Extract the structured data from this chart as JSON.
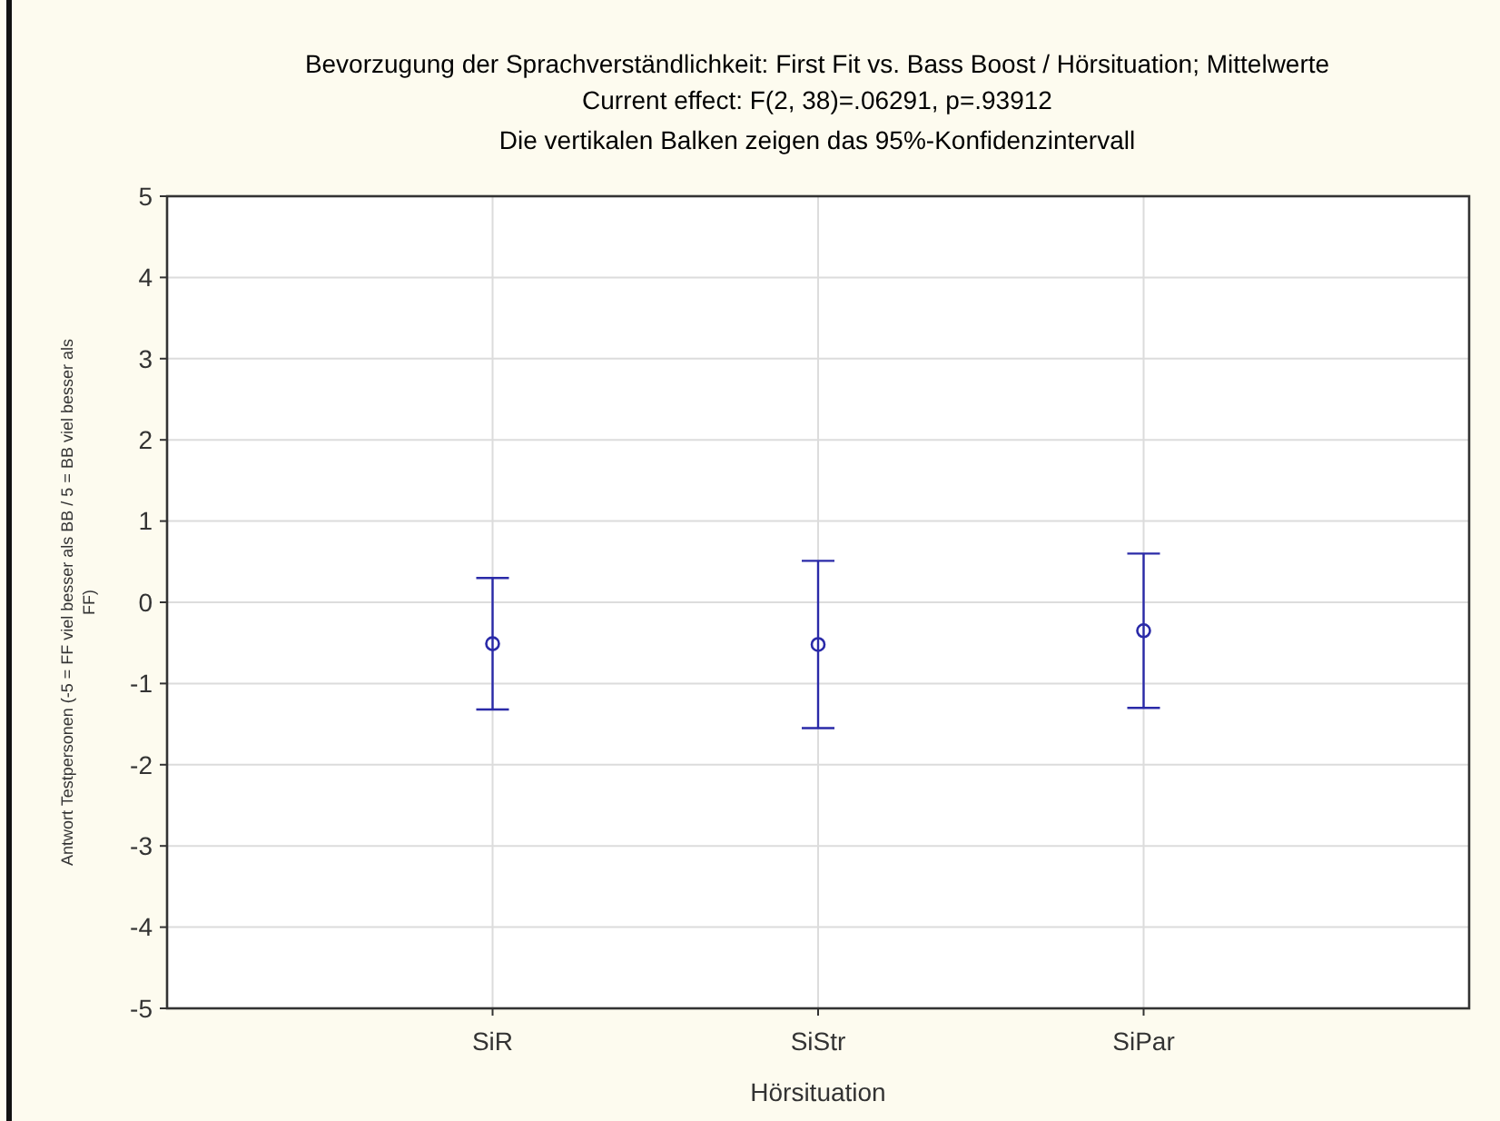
{
  "chart_data": {
    "type": "scatter",
    "title": "Bevorzugung der Sprachverständlichkeit: First Fit vs. Bass Boost / Hörsituation; Mittelwerte",
    "subtitle": "Current effect: F(2, 38)=.06291, p=.93912",
    "annotations": [
      "Die vertikalen Balken zeigen das 95%-Konfidenzintervall"
    ],
    "xlabel": "Hörsituation",
    "ylabel": "Antwort Testpersonen (-5 = FF viel besser als BB / 5 = BB viel besser als FF)",
    "categories": [
      "SiR",
      "SiStr",
      "SiPar"
    ],
    "series": [
      {
        "color": "#2a2aa8",
        "values": [
          -0.51,
          -0.52,
          -0.35
        ],
        "errors": [
          0.81,
          1.03,
          0.95
        ]
      }
    ],
    "ylim": [
      -5,
      5
    ],
    "yticks": [
      -5,
      -4,
      -3,
      -2,
      -1,
      0,
      1,
      2,
      3,
      4,
      5
    ],
    "grid": true,
    "marker": "circle"
  }
}
